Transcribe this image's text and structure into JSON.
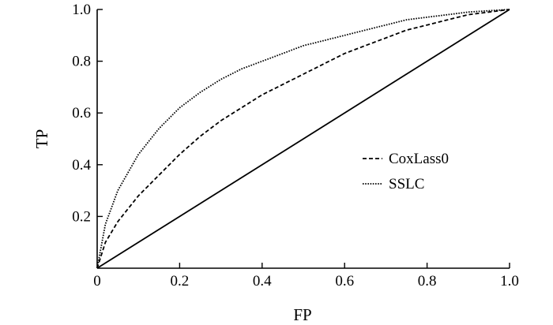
{
  "chart_data": {
    "type": "line",
    "title": "",
    "xlabel": "FP",
    "ylabel": "TP",
    "xlim": [
      0,
      1.0
    ],
    "ylim": [
      0,
      1.0
    ],
    "grid": false,
    "legend_position": "right-center",
    "x_ticks": [
      "0",
      "0.2",
      "0.4",
      "0.6",
      "0.8",
      "1.0"
    ],
    "y_ticks": [
      "0.2",
      "0.4",
      "0.6",
      "0.8",
      "1.0"
    ],
    "reference_line": {
      "x": [
        0,
        1.0
      ],
      "y": [
        0,
        1.0
      ]
    },
    "series": [
      {
        "name": "CoxLass0",
        "style": "dashed",
        "x": [
          0,
          0.02,
          0.05,
          0.1,
          0.15,
          0.2,
          0.25,
          0.3,
          0.35,
          0.4,
          0.45,
          0.5,
          0.55,
          0.6,
          0.65,
          0.7,
          0.75,
          0.8,
          0.85,
          0.9,
          0.95,
          1.0
        ],
        "y": [
          0,
          0.1,
          0.18,
          0.28,
          0.36,
          0.44,
          0.51,
          0.57,
          0.62,
          0.67,
          0.71,
          0.75,
          0.79,
          0.83,
          0.86,
          0.89,
          0.92,
          0.94,
          0.96,
          0.98,
          0.99,
          1.0
        ]
      },
      {
        "name": "SSLC",
        "style": "dotted",
        "x": [
          0,
          0.02,
          0.05,
          0.1,
          0.15,
          0.2,
          0.25,
          0.3,
          0.35,
          0.4,
          0.45,
          0.5,
          0.55,
          0.6,
          0.65,
          0.7,
          0.75,
          0.8,
          0.85,
          0.9,
          0.95,
          1.0
        ],
        "y": [
          0,
          0.17,
          0.3,
          0.44,
          0.54,
          0.62,
          0.68,
          0.73,
          0.77,
          0.8,
          0.83,
          0.86,
          0.88,
          0.9,
          0.92,
          0.94,
          0.96,
          0.97,
          0.98,
          0.99,
          0.995,
          1.0
        ]
      }
    ]
  }
}
